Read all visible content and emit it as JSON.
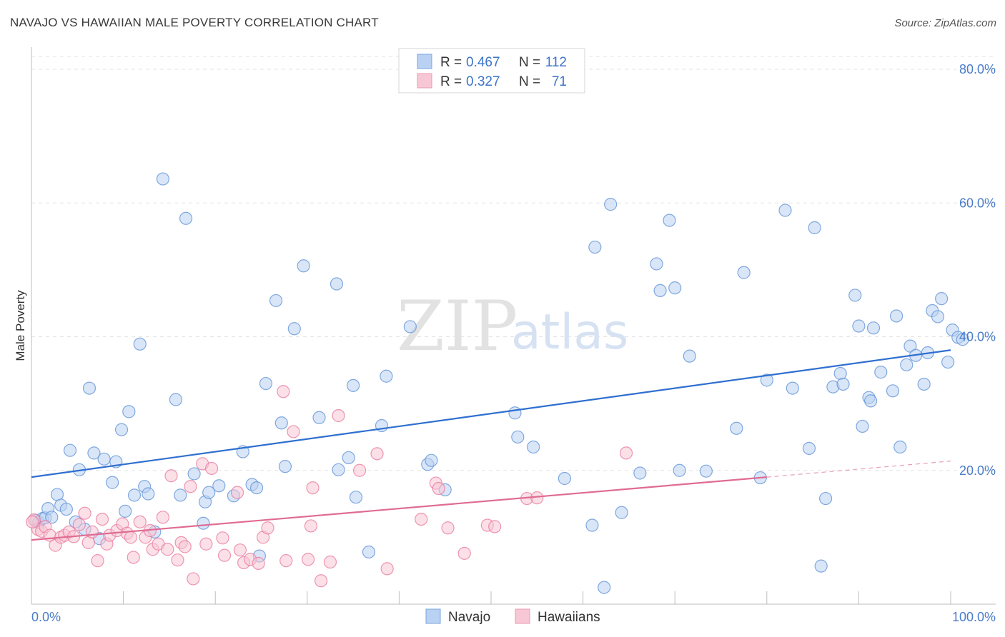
{
  "title": "NAVAJO VS HAWAIIAN MALE POVERTY CORRELATION CHART",
  "source": "Source: ZipAtlas.com",
  "watermark": {
    "zip": "ZIP",
    "atlas": "atlas"
  },
  "legend_top": {
    "rows": [
      {
        "r_label": "R =",
        "r_value": "0.467",
        "n_label": "N =",
        "n_value": "112",
        "color": "#a9c8f0"
      },
      {
        "r_label": "R =",
        "r_value": "0.327",
        "n_label": "N =",
        "n_value": "71",
        "color": "#f5b8cb"
      }
    ]
  },
  "legend_bottom": [
    "Navajo",
    "Hawaiians"
  ],
  "chart_data": {
    "type": "scatter",
    "xlabel": "",
    "ylabel": "Male Poverty",
    "xlim": [
      0,
      100
    ],
    "ylim": [
      0,
      80
    ],
    "x_tick_labels": [
      "0.0%",
      "100.0%"
    ],
    "y_tick_labels": [
      "20.0%",
      "40.0%",
      "60.0%",
      "80.0%"
    ],
    "y_ticks": [
      20,
      40,
      60,
      80
    ],
    "grid": true,
    "series": [
      {
        "name": "Navajo",
        "color": "#5b8fd6",
        "fill": "#b9d1f2",
        "trend": {
          "x": [
            0,
            100
          ],
          "y": [
            19.0,
            38.0
          ]
        },
        "points": [
          [
            0.5,
            12.5
          ],
          [
            0.8,
            12.2
          ],
          [
            1.2,
            12.8
          ],
          [
            1.5,
            12.9
          ],
          [
            1.8,
            14.3
          ],
          [
            2.2,
            13.0
          ],
          [
            2.8,
            16.4
          ],
          [
            3.2,
            14.8
          ],
          [
            3.8,
            14.2
          ],
          [
            4.2,
            23.0
          ],
          [
            4.8,
            12.3
          ],
          [
            5.2,
            20.1
          ],
          [
            5.8,
            11.2
          ],
          [
            6.3,
            32.3
          ],
          [
            6.8,
            22.6
          ],
          [
            7.4,
            9.8
          ],
          [
            7.9,
            21.7
          ],
          [
            8.8,
            18.2
          ],
          [
            9.2,
            21.3
          ],
          [
            9.8,
            26.1
          ],
          [
            10.2,
            13.9
          ],
          [
            10.6,
            28.8
          ],
          [
            11.2,
            16.3
          ],
          [
            11.8,
            38.9
          ],
          [
            12.3,
            17.6
          ],
          [
            12.7,
            16.5
          ],
          [
            13.4,
            10.8
          ],
          [
            14.3,
            63.6
          ],
          [
            15.7,
            30.6
          ],
          [
            16.2,
            16.3
          ],
          [
            16.8,
            57.7
          ],
          [
            17.7,
            19.5
          ],
          [
            18.7,
            12.1
          ],
          [
            18.9,
            15.3
          ],
          [
            19.3,
            16.7
          ],
          [
            20.4,
            17.7
          ],
          [
            22.0,
            16.2
          ],
          [
            23.0,
            22.8
          ],
          [
            24.0,
            17.9
          ],
          [
            24.5,
            17.4
          ],
          [
            24.8,
            7.2
          ],
          [
            25.5,
            33.0
          ],
          [
            26.6,
            45.4
          ],
          [
            27.2,
            27.1
          ],
          [
            27.6,
            20.6
          ],
          [
            28.6,
            41.2
          ],
          [
            29.6,
            50.6
          ],
          [
            31.3,
            27.9
          ],
          [
            33.2,
            47.9
          ],
          [
            33.4,
            20.1
          ],
          [
            34.5,
            21.9
          ],
          [
            35.0,
            32.7
          ],
          [
            35.3,
            16.0
          ],
          [
            36.7,
            7.8
          ],
          [
            38.1,
            26.7
          ],
          [
            38.6,
            34.1
          ],
          [
            41.2,
            41.5
          ],
          [
            43.1,
            20.9
          ],
          [
            43.5,
            21.5
          ],
          [
            45.0,
            17.1
          ],
          [
            52.6,
            28.6
          ],
          [
            52.9,
            25.0
          ],
          [
            54.6,
            23.5
          ],
          [
            58.0,
            18.8
          ],
          [
            61.0,
            11.8
          ],
          [
            61.3,
            53.4
          ],
          [
            62.3,
            2.5
          ],
          [
            63.0,
            59.8
          ],
          [
            64.2,
            13.7
          ],
          [
            66.2,
            19.6
          ],
          [
            68.0,
            50.9
          ],
          [
            68.4,
            46.9
          ],
          [
            69.4,
            57.4
          ],
          [
            70.0,
            47.3
          ],
          [
            70.5,
            20.0
          ],
          [
            71.6,
            37.1
          ],
          [
            73.4,
            19.9
          ],
          [
            76.7,
            26.3
          ],
          [
            77.5,
            49.6
          ],
          [
            79.3,
            18.9
          ],
          [
            80.0,
            33.5
          ],
          [
            82.0,
            58.9
          ],
          [
            82.8,
            32.3
          ],
          [
            84.6,
            23.3
          ],
          [
            85.2,
            56.3
          ],
          [
            85.9,
            5.7
          ],
          [
            86.4,
            15.8
          ],
          [
            87.2,
            32.5
          ],
          [
            88.0,
            34.5
          ],
          [
            88.3,
            32.9
          ],
          [
            89.6,
            46.2
          ],
          [
            90.0,
            41.6
          ],
          [
            90.4,
            26.6
          ],
          [
            91.1,
            30.9
          ],
          [
            91.3,
            30.4
          ],
          [
            91.6,
            41.3
          ],
          [
            92.4,
            34.7
          ],
          [
            93.7,
            31.9
          ],
          [
            94.1,
            43.1
          ],
          [
            94.5,
            23.5
          ],
          [
            95.2,
            35.8
          ],
          [
            95.6,
            38.6
          ],
          [
            96.2,
            37.2
          ],
          [
            97.1,
            32.9
          ],
          [
            97.5,
            37.6
          ],
          [
            98.0,
            43.9
          ],
          [
            98.6,
            43.0
          ],
          [
            99.0,
            45.7
          ],
          [
            99.7,
            36.2
          ],
          [
            100.2,
            41.0
          ],
          [
            100.8,
            39.9
          ],
          [
            101.3,
            39.6
          ]
        ]
      },
      {
        "name": "Hawaiians",
        "color": "#e8769b",
        "fill": "#f8c7d5",
        "trend": {
          "x": [
            0,
            80
          ],
          "y": [
            9.6,
            19.0
          ]
        },
        "trend_dashed": {
          "x": [
            80,
            100
          ],
          "y": [
            19.0,
            21.4
          ]
        },
        "points": [
          [
            0.3,
            12.6
          ],
          [
            0.7,
            11.2
          ],
          [
            1.1,
            10.9
          ],
          [
            1.5,
            11.6
          ],
          [
            2.0,
            10.3
          ],
          [
            2.6,
            8.8
          ],
          [
            3.2,
            10.0
          ],
          [
            3.6,
            10.3
          ],
          [
            4.1,
            10.8
          ],
          [
            4.6,
            10.1
          ],
          [
            5.2,
            11.9
          ],
          [
            5.8,
            13.6
          ],
          [
            6.2,
            9.2
          ],
          [
            6.6,
            10.8
          ],
          [
            7.2,
            6.5
          ],
          [
            7.7,
            12.7
          ],
          [
            8.2,
            9.0
          ],
          [
            8.5,
            10.3
          ],
          [
            9.3,
            11.0
          ],
          [
            9.9,
            12.0
          ],
          [
            10.4,
            10.6
          ],
          [
            10.8,
            10.0
          ],
          [
            11.1,
            7.0
          ],
          [
            11.8,
            12.3
          ],
          [
            12.4,
            10.0
          ],
          [
            12.9,
            11.0
          ],
          [
            13.2,
            8.2
          ],
          [
            13.8,
            9.0
          ],
          [
            14.3,
            13.0
          ],
          [
            14.8,
            8.2
          ],
          [
            15.2,
            19.2
          ],
          [
            15.9,
            6.6
          ],
          [
            16.3,
            9.2
          ],
          [
            16.7,
            8.6
          ],
          [
            17.3,
            17.6
          ],
          [
            17.6,
            3.8
          ],
          [
            18.6,
            21.0
          ],
          [
            19.0,
            9.0
          ],
          [
            19.6,
            20.3
          ],
          [
            20.8,
            9.9
          ],
          [
            21.0,
            7.3
          ],
          [
            22.4,
            16.7
          ],
          [
            22.7,
            8.1
          ],
          [
            23.1,
            6.2
          ],
          [
            23.8,
            6.7
          ],
          [
            24.7,
            6.1
          ],
          [
            25.2,
            10.0
          ],
          [
            25.7,
            11.4
          ],
          [
            27.4,
            31.8
          ],
          [
            27.7,
            6.5
          ],
          [
            28.5,
            25.8
          ],
          [
            30.1,
            6.7
          ],
          [
            30.4,
            11.7
          ],
          [
            30.6,
            17.4
          ],
          [
            31.5,
            3.5
          ],
          [
            32.5,
            6.3
          ],
          [
            33.4,
            28.2
          ],
          [
            35.7,
            20.0
          ],
          [
            37.6,
            22.5
          ],
          [
            38.7,
            5.3
          ],
          [
            42.4,
            12.7
          ],
          [
            44.0,
            18.1
          ],
          [
            44.3,
            17.3
          ],
          [
            45.3,
            11.4
          ],
          [
            47.1,
            7.6
          ],
          [
            49.6,
            11.8
          ],
          [
            50.4,
            11.6
          ],
          [
            53.9,
            15.8
          ],
          [
            55.0,
            15.9
          ],
          [
            64.7,
            22.6
          ],
          [
            0.1,
            12.3
          ]
        ]
      }
    ]
  }
}
